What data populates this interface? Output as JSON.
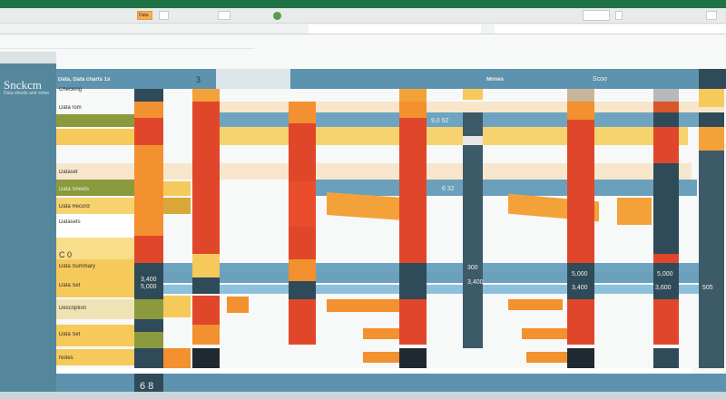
{
  "app": {
    "title_bar_color": "#1f7244",
    "ribbon": {
      "highlight_button": "Data",
      "icons": [
        "paste-icon",
        "refresh-icon",
        "check-circle-icon",
        "print-icon",
        "window-icon"
      ]
    }
  },
  "sidebar": {
    "title": "Snckcm",
    "subtitle": "Data sheets and notes"
  },
  "header": {
    "left_label": "Data, Data charts 1s",
    "mid_label": "Mnnes",
    "right_label": "Scoo",
    "col_mark": "3"
  },
  "rows": [
    {
      "label": "Checking"
    },
    {
      "label": "Data rom"
    },
    {
      "label": "Dataset"
    },
    {
      "label": "Data Sheets"
    },
    {
      "label": "Data Record"
    },
    {
      "label": "Datasets"
    },
    {
      "label": "C 0"
    },
    {
      "label": "Data Summary"
    },
    {
      "label": "Data Set"
    },
    {
      "label": "Description"
    },
    {
      "label": "Data Set"
    },
    {
      "label": "Notes"
    }
  ],
  "values": {
    "col1": [
      "5,000",
      "3,400"
    ],
    "col2": [
      "300",
      "3,400"
    ],
    "col3": [
      "5,000",
      "3,400"
    ],
    "col4": [
      "5,000",
      "3,600"
    ],
    "col5": [
      "505"
    ],
    "mid": [
      "9,0 52",
      "6 32"
    ],
    "footer": "6 8"
  },
  "colors": {
    "steel_blue": "#5d93ae",
    "dark_slate": "#2f4a58",
    "orange": "#f3902f",
    "red": "#e0472a",
    "yellow": "#f6c95b",
    "olive": "#8b9a3c",
    "beige": "#f7e6cc"
  }
}
